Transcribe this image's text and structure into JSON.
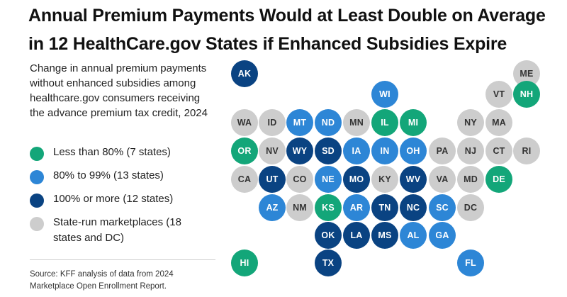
{
  "title": "Annual Premium Payments Would at Least Double on Average in 12 HealthCare.gov States if Enhanced Subsidies Expire",
  "subtitle": "Change in annual premium payments without enhanced subsidies among healthcare.gov consumers receiving the advance premium tax credit, 2024",
  "legend": [
    {
      "label": "Less than 80% (7 states)",
      "color": "#13a679"
    },
    {
      "label": "80% to 99% (13 states)",
      "color": "#2d86d6"
    },
    {
      "label": "100% or more (12 states)",
      "color": "#0a4382"
    },
    {
      "label": "State-run marketplaces (18 states and DC)",
      "color": "#cdcdcd"
    }
  ],
  "source": "Source: KFF analysis of data from 2024 Marketplace Open Enrollment Report.",
  "colors": {
    "lt80": "#13a679",
    "80to99": "#2d86d6",
    "gte100": "#0a4382",
    "state_run": "#cdcdcd"
  },
  "states": [
    {
      "abbr": "AK",
      "category": "gte100"
    },
    {
      "abbr": "ME",
      "category": "state_run"
    },
    {
      "abbr": "WI",
      "category": "80to99"
    },
    {
      "abbr": "VT",
      "category": "state_run"
    },
    {
      "abbr": "NH",
      "category": "lt80"
    },
    {
      "abbr": "WA",
      "category": "state_run"
    },
    {
      "abbr": "ID",
      "category": "state_run"
    },
    {
      "abbr": "MT",
      "category": "80to99"
    },
    {
      "abbr": "ND",
      "category": "80to99"
    },
    {
      "abbr": "MN",
      "category": "state_run"
    },
    {
      "abbr": "IL",
      "category": "lt80"
    },
    {
      "abbr": "MI",
      "category": "lt80"
    },
    {
      "abbr": "NY",
      "category": "state_run"
    },
    {
      "abbr": "MA",
      "category": "state_run"
    },
    {
      "abbr": "OR",
      "category": "lt80"
    },
    {
      "abbr": "NV",
      "category": "state_run"
    },
    {
      "abbr": "WY",
      "category": "gte100"
    },
    {
      "abbr": "SD",
      "category": "gte100"
    },
    {
      "abbr": "IA",
      "category": "80to99"
    },
    {
      "abbr": "IN",
      "category": "80to99"
    },
    {
      "abbr": "OH",
      "category": "80to99"
    },
    {
      "abbr": "PA",
      "category": "state_run"
    },
    {
      "abbr": "NJ",
      "category": "state_run"
    },
    {
      "abbr": "CT",
      "category": "state_run"
    },
    {
      "abbr": "RI",
      "category": "state_run"
    },
    {
      "abbr": "CA",
      "category": "state_run"
    },
    {
      "abbr": "UT",
      "category": "gte100"
    },
    {
      "abbr": "CO",
      "category": "state_run"
    },
    {
      "abbr": "NE",
      "category": "80to99"
    },
    {
      "abbr": "MO",
      "category": "gte100"
    },
    {
      "abbr": "KY",
      "category": "state_run"
    },
    {
      "abbr": "WV",
      "category": "gte100"
    },
    {
      "abbr": "VA",
      "category": "state_run"
    },
    {
      "abbr": "MD",
      "category": "state_run"
    },
    {
      "abbr": "DE",
      "category": "lt80"
    },
    {
      "abbr": "AZ",
      "category": "80to99"
    },
    {
      "abbr": "NM",
      "category": "state_run"
    },
    {
      "abbr": "KS",
      "category": "lt80"
    },
    {
      "abbr": "AR",
      "category": "80to99"
    },
    {
      "abbr": "TN",
      "category": "gte100"
    },
    {
      "abbr": "NC",
      "category": "gte100"
    },
    {
      "abbr": "SC",
      "category": "80to99"
    },
    {
      "abbr": "DC",
      "category": "state_run"
    },
    {
      "abbr": "OK",
      "category": "gte100"
    },
    {
      "abbr": "LA",
      "category": "gte100"
    },
    {
      "abbr": "MS",
      "category": "gte100"
    },
    {
      "abbr": "AL",
      "category": "80to99"
    },
    {
      "abbr": "GA",
      "category": "80to99"
    },
    {
      "abbr": "HI",
      "category": "lt80"
    },
    {
      "abbr": "TX",
      "category": "gte100"
    },
    {
      "abbr": "FL",
      "category": "80to99"
    }
  ]
}
